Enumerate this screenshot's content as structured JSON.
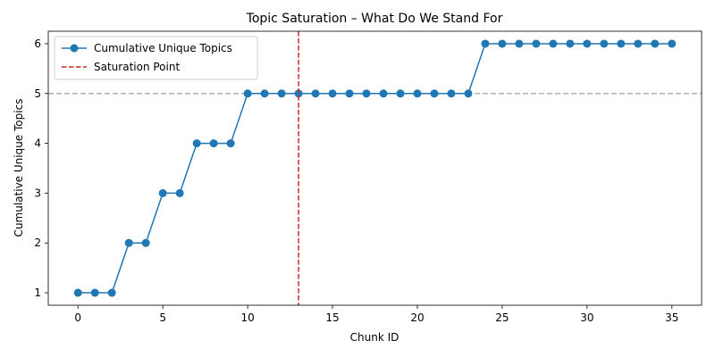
{
  "chart_data": {
    "type": "line",
    "title": "Topic Saturation – What Do We Stand For",
    "xlabel": "Chunk ID",
    "ylabel": "Cumulative Unique Topics",
    "xlim": [
      -1.75,
      36.75
    ],
    "ylim": [
      0.75,
      6.25
    ],
    "xticks": [
      0,
      5,
      10,
      15,
      20,
      25,
      30,
      35
    ],
    "yticks": [
      1,
      2,
      3,
      4,
      5,
      6
    ],
    "grid": false,
    "legend_position": "top-left",
    "series": [
      {
        "name": "Cumulative Unique Topics",
        "color": "#1f77b4",
        "marker": "circle",
        "x": [
          0,
          1,
          2,
          3,
          4,
          5,
          6,
          7,
          8,
          9,
          10,
          11,
          12,
          13,
          14,
          15,
          16,
          17,
          18,
          19,
          20,
          21,
          22,
          23,
          24,
          25,
          26,
          27,
          28,
          29,
          30,
          31,
          32,
          33,
          34,
          35
        ],
        "y": [
          1,
          1,
          1,
          2,
          2,
          3,
          3,
          4,
          4,
          4,
          5,
          5,
          5,
          5,
          5,
          5,
          5,
          5,
          5,
          5,
          5,
          5,
          5,
          5,
          6,
          6,
          6,
          6,
          6,
          6,
          6,
          6,
          6,
          6,
          6,
          6
        ]
      }
    ],
    "annotations": [
      {
        "type": "vline",
        "name": "Saturation Point",
        "x": 13,
        "color": "#d62728",
        "style": "dashed"
      },
      {
        "type": "hline",
        "y": 5,
        "color": "#b0b0b0",
        "style": "dashed"
      }
    ]
  }
}
